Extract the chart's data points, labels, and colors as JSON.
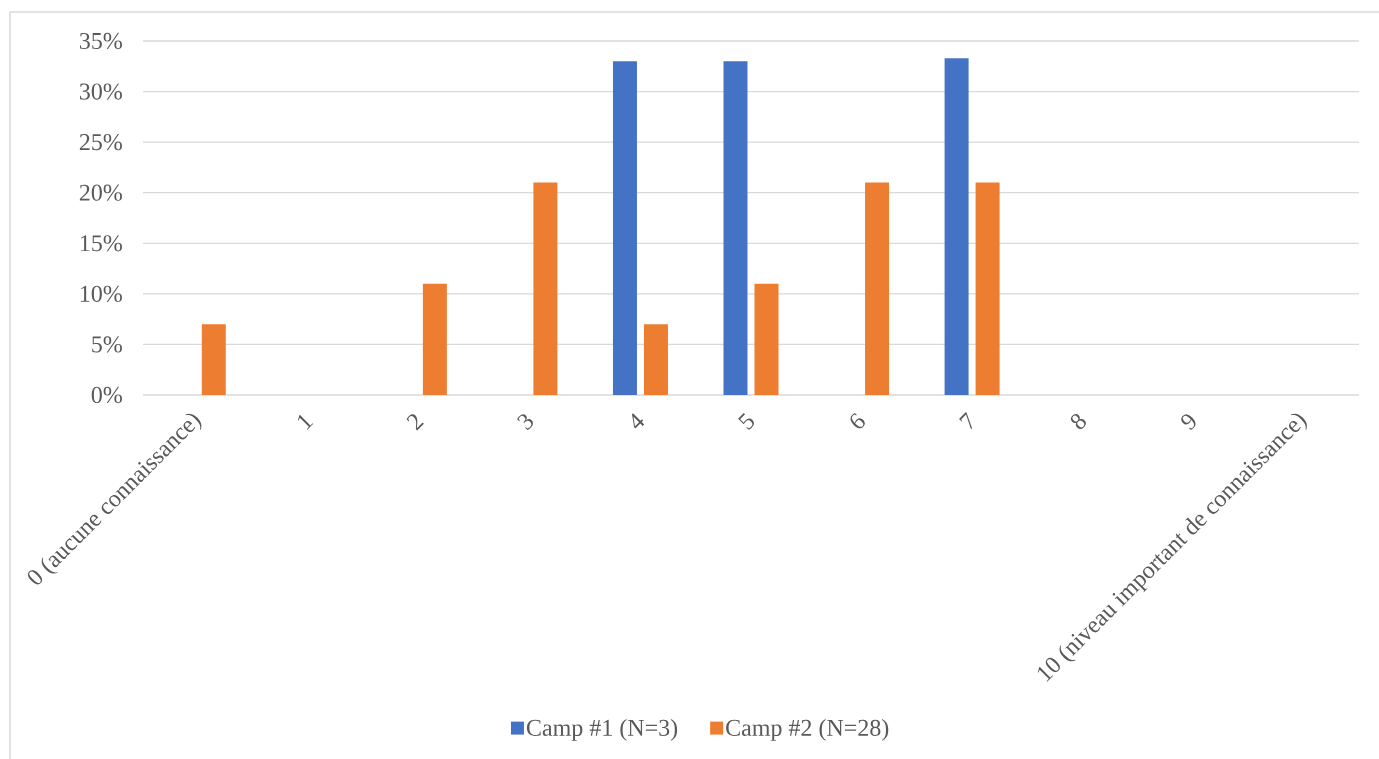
{
  "chart_data": {
    "type": "bar",
    "categories": [
      "0 (aucune connaissance)",
      "1",
      "2",
      "3",
      "4",
      "5",
      "6",
      "7",
      "8",
      "9",
      "10 (niveau important de connaissance)"
    ],
    "series": [
      {
        "name": "Camp #1 (N=3)",
        "color": "#4472c4",
        "values": [
          null,
          null,
          null,
          null,
          33,
          33,
          null,
          33.3,
          null,
          null,
          null
        ]
      },
      {
        "name": "Camp #2 (N=28)",
        "color": "#ed7d31",
        "values": [
          7,
          null,
          11,
          21,
          7,
          11,
          21,
          21,
          null,
          null,
          null
        ]
      }
    ],
    "ylim": [
      0,
      35
    ],
    "yticks": [
      {
        "value": 0,
        "label": "0%"
      },
      {
        "value": 5,
        "label": "5%"
      },
      {
        "value": 10,
        "label": "10%"
      },
      {
        "value": 15,
        "label": "15%"
      },
      {
        "value": 20,
        "label": "20%"
      },
      {
        "value": 25,
        "label": "25%"
      },
      {
        "value": 30,
        "label": "30%"
      },
      {
        "value": 35,
        "label": "35%"
      }
    ],
    "grid": "y",
    "legend": "bottom"
  }
}
